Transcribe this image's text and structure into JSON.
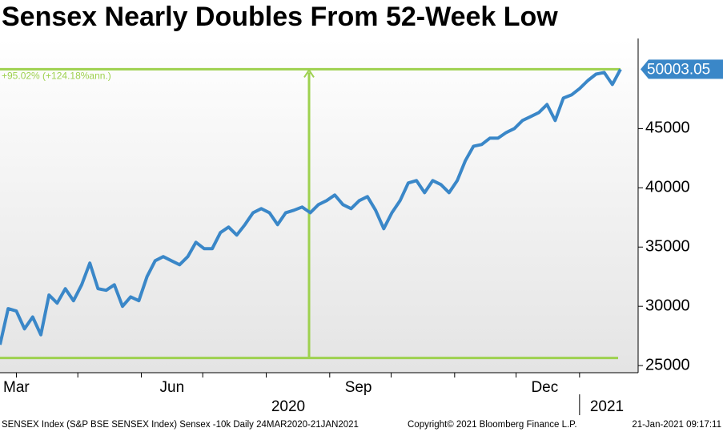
{
  "chart_data": {
    "type": "line",
    "title": "Sensex Nearly Doubles From 52-Week Low",
    "annotation": "+95.02% (+124.18%ann.)",
    "months": [
      "Mar",
      "Jun",
      "Sep",
      "Dec"
    ],
    "years": [
      "2020",
      "2021"
    ],
    "footer": [
      "SENSEX Index (S&P BSE SENSEX Index) Sensex -10k  Daily 24MAR2020-21JAN2021",
      "Copyright© 2021 Bloomberg Finance L.P.",
      "21-Jan-2021 09:17:11"
    ],
    "low": 25640,
    "last_value": 50003.05,
    "series": [
      {
        "name": "Sensex",
        "color": "#3a87c8",
        "values": [
          26760,
          29800,
          29600,
          28100,
          29100,
          27600,
          30950,
          30270,
          31490,
          30470,
          31820,
          33650,
          31490,
          31350,
          31820,
          30000,
          30800,
          30470,
          32500,
          33850,
          34190,
          33850,
          33510,
          34190,
          35400,
          34870,
          34870,
          36220,
          36690,
          36010,
          36890,
          37900,
          38240,
          37900,
          36890,
          37900,
          38110,
          38380,
          37900,
          38580,
          38920,
          39390,
          38580,
          38240,
          38920,
          39260,
          38110,
          36550,
          37900,
          38920,
          40410,
          40610,
          39590,
          40610,
          40270,
          39590,
          40610,
          42300,
          43510,
          43650,
          44190,
          44190,
          44660,
          45000,
          45680,
          46010,
          46350,
          47030,
          45680,
          47570,
          47840,
          48380,
          49050,
          49590,
          49730,
          48720,
          50003.05
        ]
      }
    ],
    "range_color": "#9ed14f",
    "ylim": [
      24400,
      52600
    ],
    "yticks": [
      25000,
      30000,
      35000,
      40000,
      45000
    ]
  }
}
